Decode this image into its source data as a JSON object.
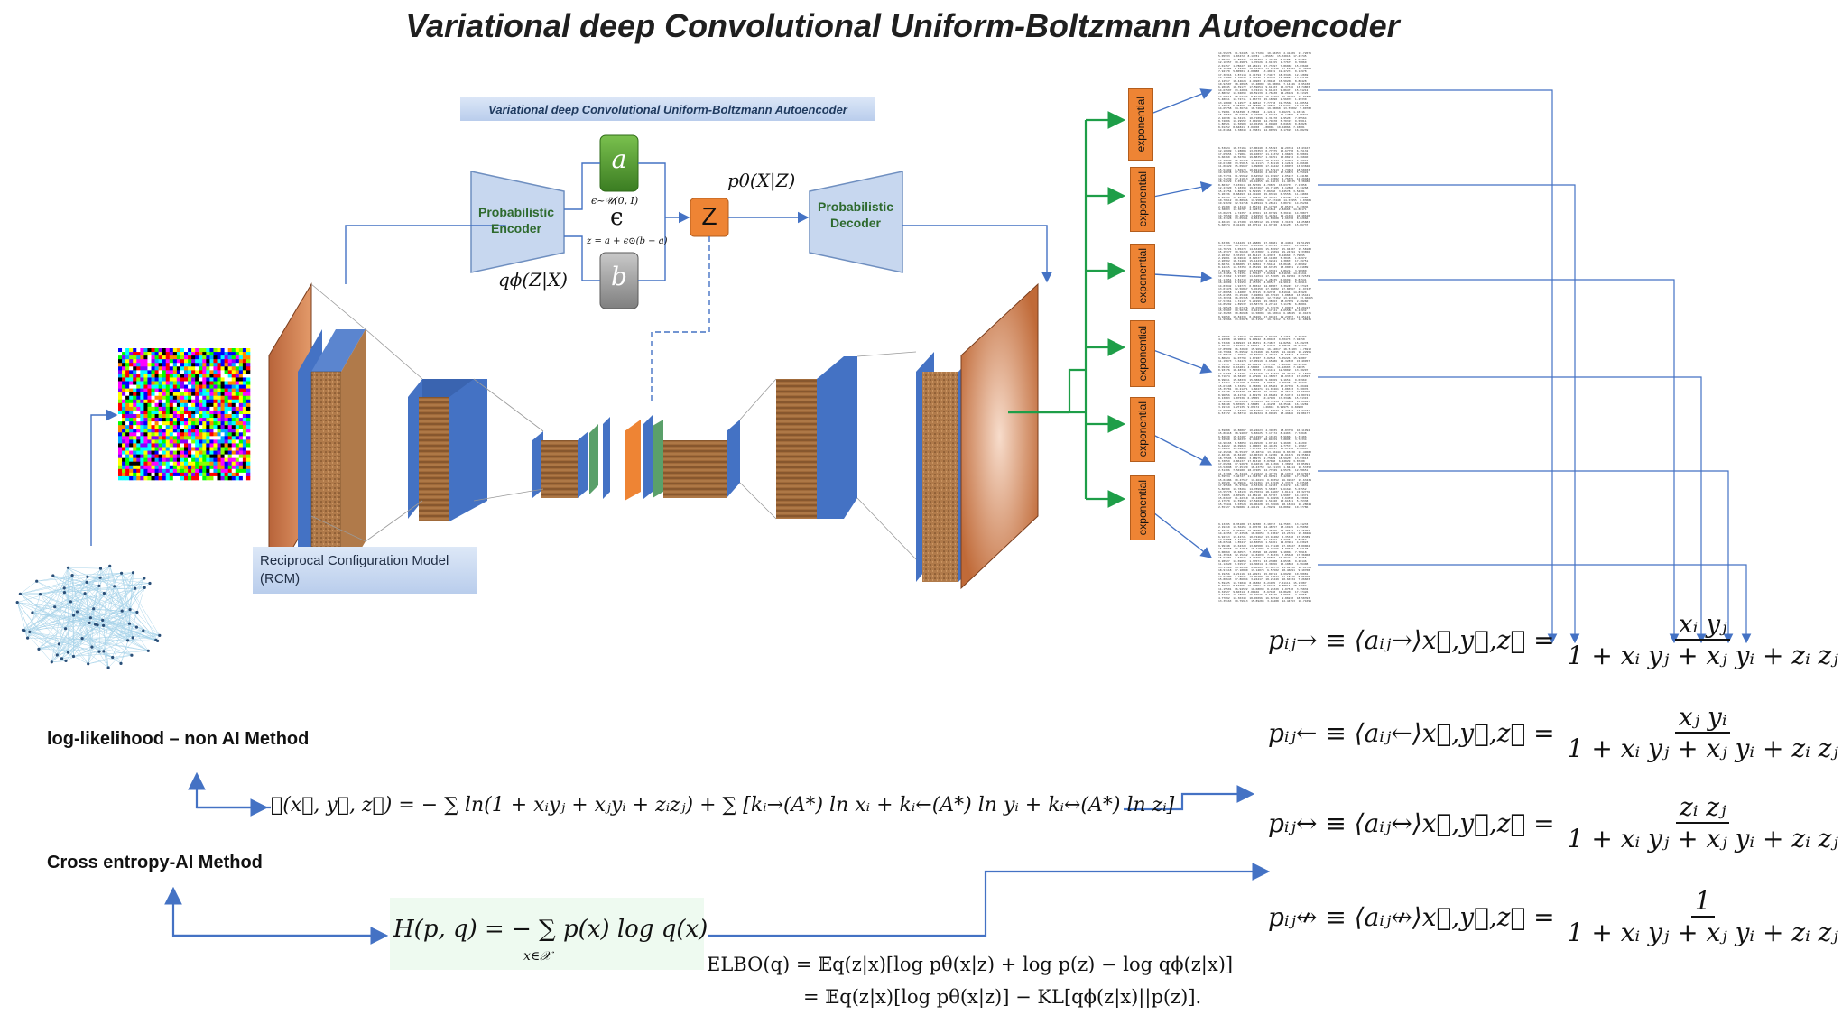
{
  "title": "Variational deep Convolutional Uniform-Boltzmann Autoencoder",
  "subtitle": "Variational deep Convolutional Uniform-Boltzmann Autoencoder",
  "encoder_label": "Probabilistic Encoder",
  "decoder_label": "Probabilistic Decoder",
  "latent": {
    "a": "a",
    "b": "b",
    "z": "Z",
    "epsilon": "ϵ",
    "eps_dist": "ϵ~𝒰(0, I)",
    "z_formula": "z = a + ϵ⊙(b − a)",
    "encoder_dist": "qϕ(Z|X)",
    "decoder_dist": "pθ(X|Z)"
  },
  "rcm_label": "Reciprocal Configuration Model (RCM)",
  "exponential_label": "exponential",
  "exponential_count": 6,
  "headings": {
    "loglik": "log-likelihood – non AI Method",
    "crossentropy": "Cross entropy-AI Method"
  },
  "formulas": {
    "loglik": "ℒ(x⃗, y⃗, z⃗) = − ∑ ln(1 + xᵢyⱼ + xⱼyᵢ + zᵢzⱼ) + ∑ [kᵢ→(A*) ln xᵢ + kᵢ←(A*) ln yᵢ + kᵢ↔(A*) ln zᵢ]",
    "cross": "H(p, q) = − ∑ p(x) log q(x)",
    "cross_sub": "x∈𝒳",
    "elbo1": "ELBO(q) = 𝔼q(z|x)[log pθ(x|z) + log p(z) − log qϕ(z|x)]",
    "elbo2": "= 𝔼q(z|x)[log pθ(x|z)] − KL[qϕ(z|x)||p(z)].",
    "p_right_lhs": "pᵢⱼ→ ≡ ⟨aᵢⱼ→⟩x⃗,y⃗,z⃗ =",
    "p_right_num": "xᵢ yⱼ",
    "p_left_lhs": "pᵢⱼ← ≡ ⟨aᵢⱼ←⟩x⃗,y⃗,z⃗ =",
    "p_left_num": "xⱼ yᵢ",
    "p_bi_lhs": "pᵢⱼ↔ ≡ ⟨aᵢⱼ↔⟩x⃗,y⃗,z⃗ =",
    "p_bi_num": "zᵢ zⱼ",
    "p_none_lhs": "pᵢⱼ↮ ≡ ⟨aᵢⱼ↮⟩x⃗,y⃗,z⃗ =",
    "p_none_num": "1",
    "denominator": "1 + xᵢ yⱼ + xⱼ yᵢ + zᵢ zⱼ"
  },
  "colors": {
    "orange": "#ee8434",
    "blue": "#4472c4",
    "green": "#1e9e48",
    "wood": "#a0683a",
    "encoder_fill": "#c7d7ef"
  }
}
